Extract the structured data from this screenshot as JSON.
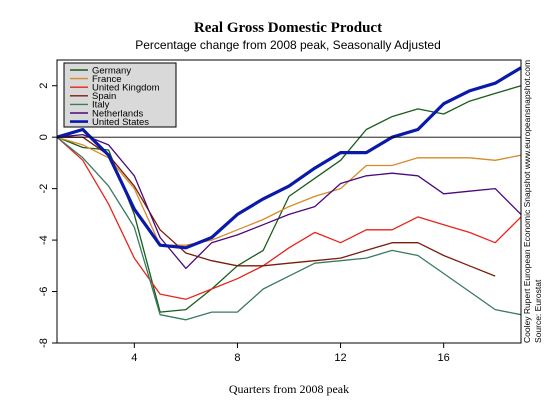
{
  "chart_data": {
    "type": "line",
    "title": "Real Gross Domestic Product",
    "subtitle": "Percentage change from 2008 peak, Seasonally Adjusted",
    "xlabel": "Quarters from 2008 peak",
    "ylabel": "",
    "xlim": [
      1,
      19
    ],
    "ylim": [
      -8,
      3
    ],
    "xticks": [
      4,
      8,
      12,
      16
    ],
    "yticks": [
      2,
      0,
      -2,
      -4,
      -6,
      -8
    ],
    "zero_line": true,
    "grid": false,
    "legend_position": "top-left",
    "notes": [
      "Cooley Rupert European Economic Snapshot  www.europeansnapshot.com",
      "Source: Eurostat"
    ],
    "series": [
      {
        "name": "Germany",
        "color": "#1a5c1a",
        "x": [
          1,
          2,
          3,
          4,
          5,
          6,
          7,
          8,
          9,
          10,
          11,
          12,
          13,
          14,
          15,
          16,
          17,
          18,
          19
        ],
        "y": [
          0,
          -0.4,
          -0.5,
          -3.0,
          -6.8,
          -6.7,
          -5.9,
          -5.0,
          -4.4,
          -2.3,
          -1.6,
          -0.9,
          0.3,
          0.8,
          1.1,
          0.9,
          1.4,
          1.7,
          2.0
        ]
      },
      {
        "name": "France",
        "color": "#d88a2a",
        "x": [
          1,
          2,
          3,
          4,
          5,
          6,
          7,
          8,
          9,
          10,
          11,
          12,
          13,
          14,
          15,
          16,
          17,
          18,
          19
        ],
        "y": [
          0,
          -0.3,
          -0.8,
          -2.0,
          -4.2,
          -4.2,
          -4.0,
          -3.6,
          -3.2,
          -2.7,
          -2.3,
          -2.0,
          -1.1,
          -1.1,
          -0.8,
          -0.8,
          -0.8,
          -0.9,
          -0.7
        ]
      },
      {
        "name": "United Kingdom",
        "color": "#e8231c",
        "x": [
          1,
          2,
          3,
          4,
          5,
          6,
          7,
          8,
          9,
          10,
          11,
          12,
          13,
          14,
          15,
          16,
          17,
          18,
          19
        ],
        "y": [
          0,
          -0.9,
          -2.6,
          -4.7,
          -6.1,
          -6.3,
          -5.9,
          -5.5,
          -5.0,
          -4.3,
          -3.7,
          -4.1,
          -3.6,
          -3.6,
          -3.1,
          -3.4,
          -3.7,
          -4.1,
          -3.1
        ]
      },
      {
        "name": "Spain",
        "color": "#7a1d0c",
        "x": [
          1,
          2,
          3,
          4,
          5,
          6,
          7,
          8,
          9,
          10,
          11,
          12,
          13,
          14,
          15,
          16,
          17,
          18
        ],
        "y": [
          0,
          0,
          -0.7,
          -1.9,
          -3.6,
          -4.5,
          -4.8,
          -5.0,
          -5.0,
          -4.9,
          -4.8,
          -4.7,
          -4.4,
          -4.1,
          -4.1,
          -4.6,
          -5.0,
          -5.4
        ]
      },
      {
        "name": "Italy",
        "color": "#3a7a60",
        "x": [
          1,
          2,
          3,
          4,
          5,
          6,
          7,
          8,
          9,
          10,
          11,
          12,
          13,
          14,
          15,
          16,
          17,
          18,
          19
        ],
        "y": [
          0,
          -0.8,
          -1.9,
          -3.5,
          -6.9,
          -7.1,
          -6.8,
          -6.8,
          -5.9,
          -5.4,
          -4.9,
          -4.8,
          -4.7,
          -4.4,
          -4.6,
          -5.3,
          -6.0,
          -6.7,
          -6.9
        ]
      },
      {
        "name": "Netherlands",
        "color": "#4b0a7c",
        "x": [
          1,
          2,
          3,
          4,
          5,
          6,
          7,
          8,
          9,
          10,
          11,
          12,
          13,
          14,
          15,
          16,
          17,
          18,
          19
        ],
        "y": [
          0,
          0.1,
          -0.3,
          -1.5,
          -3.9,
          -5.1,
          -4.1,
          -3.8,
          -3.4,
          -3.0,
          -2.7,
          -1.8,
          -1.5,
          -1.4,
          -1.5,
          -2.2,
          -2.1,
          -2.0,
          -3.0
        ]
      },
      {
        "name": "United States",
        "color": "#0a1aa8",
        "x": [
          1,
          2,
          3,
          4,
          5,
          6,
          7,
          8,
          9,
          10,
          11,
          12,
          13,
          14,
          15,
          16,
          17,
          18,
          19
        ],
        "y": [
          0,
          0.3,
          -0.7,
          -2.8,
          -4.2,
          -4.3,
          -3.9,
          -3.0,
          -2.4,
          -1.9,
          -1.2,
          -0.6,
          -0.6,
          0,
          0.3,
          1.3,
          1.8,
          2.1,
          2.7
        ]
      }
    ]
  }
}
